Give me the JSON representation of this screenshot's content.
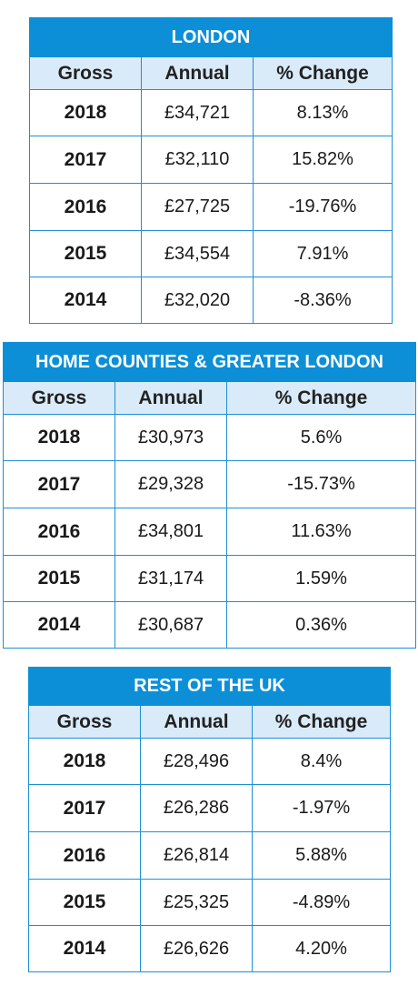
{
  "tables": [
    {
      "title": "LONDON",
      "headers": [
        "Gross",
        "Annual",
        "% Change"
      ],
      "rows": [
        {
          "year": "2018",
          "annual": "£34,721",
          "change": "8.13%"
        },
        {
          "year": "2017",
          "annual": "£32,110",
          "change": "15.82%"
        },
        {
          "year": "2016",
          "annual": "£27,725",
          "change": "-19.76%"
        },
        {
          "year": "2015",
          "annual": "£34,554",
          "change": "7.91%"
        },
        {
          "year": "2014",
          "annual": "£32,020",
          "change": "-8.36%"
        }
      ]
    },
    {
      "title": "HOME COUNTIES & GREATER LONDON",
      "headers": [
        "Gross",
        "Annual",
        "% Change"
      ],
      "rows": [
        {
          "year": "2018",
          "annual": "£30,973",
          "change": "5.6%"
        },
        {
          "year": "2017",
          "annual": "£29,328",
          "change": "-15.73%"
        },
        {
          "year": "2016",
          "annual": "£34,801",
          "change": "11.63%"
        },
        {
          "year": "2015",
          "annual": "£31,174",
          "change": "1.59%"
        },
        {
          "year": "2014",
          "annual": "£30,687",
          "change": "0.36%"
        }
      ]
    },
    {
      "title": "REST OF THE UK",
      "headers": [
        "Gross",
        "Annual",
        "% Change"
      ],
      "rows": [
        {
          "year": "2018",
          "annual": "£28,496",
          "change": "8.4%"
        },
        {
          "year": "2017",
          "annual": "£26,286",
          "change": "-1.97%"
        },
        {
          "year": "2016",
          "annual": "£26,814",
          "change": "5.88%"
        },
        {
          "year": "2015",
          "annual": "£25,325",
          "change": "-4.89%"
        },
        {
          "year": "2014",
          "annual": "£26,626",
          "change": "4.20%"
        }
      ]
    }
  ],
  "colors": {
    "title_background": "#0c8fd7",
    "header_background": "#d9eaf9",
    "border": "#1f8fd4"
  }
}
